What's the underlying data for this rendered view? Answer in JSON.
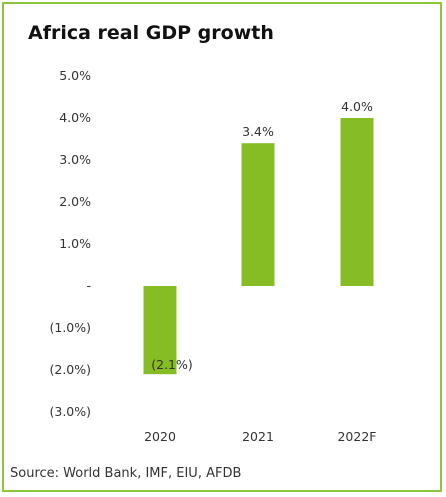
{
  "colors": {
    "border": "#8dc63f",
    "bar": "#86bd25",
    "text": "#333333",
    "title": "#111111"
  },
  "source": "Source: World Bank, IMF, EIU, AFDB",
  "chart_data": {
    "type": "bar",
    "title": "Africa real GDP growth",
    "categories": [
      "2020",
      "2021",
      "2022F"
    ],
    "values": [
      -2.1,
      3.4,
      4.0
    ],
    "data_labels": [
      "(2.1%)",
      "3.4%",
      "4.0%"
    ],
    "ylim": [
      -3.0,
      5.0
    ],
    "yticks": [
      5.0,
      4.0,
      3.0,
      2.0,
      1.0,
      0.0,
      -1.0,
      -2.0,
      -3.0
    ],
    "ytick_labels": [
      "5.0%",
      "4.0%",
      "3.0%",
      "2.0%",
      "1.0%",
      "-",
      "(1.0%)",
      "(2.0%)",
      "(3.0%)"
    ],
    "xlabel": "",
    "ylabel": "",
    "grid": false,
    "legend": "none"
  }
}
